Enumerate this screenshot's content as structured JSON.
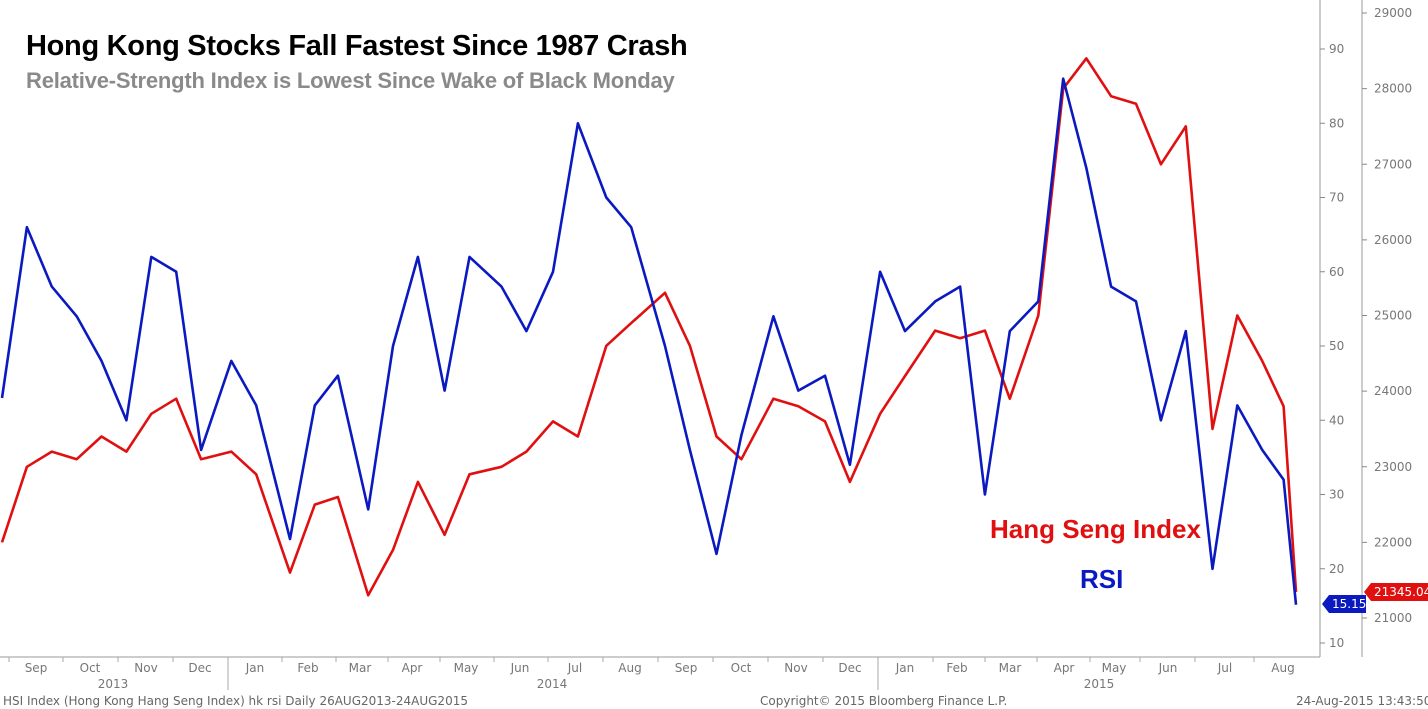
{
  "header": {
    "title": "Hong Kong Stocks Fall Fastest Since 1987 Crash",
    "subtitle": "Relative-Strength Index is Lowest Since Wake of Black Monday"
  },
  "footer": {
    "left": "HSI Index (Hong Kong Hang Seng Index) hk rsi  Daily 26AUG2013-24AUG2015",
    "center": "Copyright© 2015 Bloomberg Finance L.P.",
    "right": "24-Aug-2015 13:43:50"
  },
  "chart_data": {
    "type": "line",
    "x_months": [
      "Sep",
      "Oct",
      "Nov",
      "Dec",
      "Jan",
      "Feb",
      "Mar",
      "Apr",
      "May",
      "Jun",
      "Jul",
      "Aug",
      "Sep",
      "Oct",
      "Nov",
      "Dec",
      "Jan",
      "Feb",
      "Mar",
      "Apr",
      "May",
      "Jun",
      "Jul",
      "Aug"
    ],
    "x_years": [
      "2013",
      "2014",
      "2015"
    ],
    "x_range": [
      "2013-08-26",
      "2015-08-24"
    ],
    "rsi_axis": {
      "min": 5,
      "max": 95,
      "ticks": [
        10,
        20,
        30,
        40,
        50,
        60,
        70,
        80,
        90
      ]
    },
    "price_axis": {
      "min": 20500,
      "max": 29200,
      "ticks": [
        21000,
        22000,
        23000,
        24000,
        25000,
        26000,
        27000,
        28000,
        29000
      ]
    },
    "colors": {
      "rsi": "#0b1ac0",
      "hsi": "#e01010"
    },
    "series": [
      {
        "name": "Hang Seng Index",
        "axis": "price",
        "last_value": "21345.04",
        "points": [
          [
            "2013-08-26",
            22000
          ],
          [
            "2013-09-09",
            23000
          ],
          [
            "2013-09-23",
            23200
          ],
          [
            "2013-10-07",
            23100
          ],
          [
            "2013-10-21",
            23400
          ],
          [
            "2013-11-04",
            23200
          ],
          [
            "2013-11-18",
            23700
          ],
          [
            "2013-12-02",
            23900
          ],
          [
            "2013-12-16",
            23100
          ],
          [
            "2014-01-02",
            23200
          ],
          [
            "2014-01-16",
            22900
          ],
          [
            "2014-02-04",
            21600
          ],
          [
            "2014-02-18",
            22500
          ],
          [
            "2014-03-03",
            22600
          ],
          [
            "2014-03-20",
            21300
          ],
          [
            "2014-04-03",
            21900
          ],
          [
            "2014-04-17",
            22800
          ],
          [
            "2014-05-02",
            22100
          ],
          [
            "2014-05-16",
            22900
          ],
          [
            "2014-06-03",
            23000
          ],
          [
            "2014-06-17",
            23200
          ],
          [
            "2014-07-02",
            23600
          ],
          [
            "2014-07-16",
            23400
          ],
          [
            "2014-08-01",
            24600
          ],
          [
            "2014-08-15",
            24900
          ],
          [
            "2014-09-03",
            25300
          ],
          [
            "2014-09-17",
            24600
          ],
          [
            "2014-10-02",
            23400
          ],
          [
            "2014-10-16",
            23100
          ],
          [
            "2014-11-03",
            23900
          ],
          [
            "2014-11-17",
            23800
          ],
          [
            "2014-12-02",
            23600
          ],
          [
            "2014-12-16",
            22800
          ],
          [
            "2015-01-02",
            23700
          ],
          [
            "2015-01-16",
            24200
          ],
          [
            "2015-02-02",
            24800
          ],
          [
            "2015-02-16",
            24700
          ],
          [
            "2015-03-02",
            24800
          ],
          [
            "2015-03-16",
            23900
          ],
          [
            "2015-04-01",
            25000
          ],
          [
            "2015-04-15",
            28000
          ],
          [
            "2015-04-28",
            28400
          ],
          [
            "2015-05-12",
            27900
          ],
          [
            "2015-05-26",
            27800
          ],
          [
            "2015-06-09",
            27000
          ],
          [
            "2015-06-23",
            27500
          ],
          [
            "2015-07-08",
            23500
          ],
          [
            "2015-07-22",
            25000
          ],
          [
            "2015-08-05",
            24400
          ],
          [
            "2015-08-17",
            23800
          ],
          [
            "2015-08-24",
            21345.04
          ]
        ]
      },
      {
        "name": "RSI",
        "axis": "rsi",
        "last_value": "15.15",
        "points": [
          [
            "2013-08-26",
            43
          ],
          [
            "2013-09-09",
            66
          ],
          [
            "2013-09-23",
            58
          ],
          [
            "2013-10-07",
            54
          ],
          [
            "2013-10-21",
            48
          ],
          [
            "2013-11-04",
            40
          ],
          [
            "2013-11-18",
            62
          ],
          [
            "2013-12-02",
            60
          ],
          [
            "2013-12-16",
            36
          ],
          [
            "2014-01-02",
            48
          ],
          [
            "2014-01-16",
            42
          ],
          [
            "2014-02-04",
            24
          ],
          [
            "2014-02-18",
            42
          ],
          [
            "2014-03-03",
            46
          ],
          [
            "2014-03-20",
            28
          ],
          [
            "2014-04-03",
            50
          ],
          [
            "2014-04-17",
            62
          ],
          [
            "2014-05-02",
            44
          ],
          [
            "2014-05-16",
            62
          ],
          [
            "2014-06-03",
            58
          ],
          [
            "2014-06-17",
            52
          ],
          [
            "2014-07-02",
            60
          ],
          [
            "2014-07-16",
            80
          ],
          [
            "2014-08-01",
            70
          ],
          [
            "2014-08-15",
            66
          ],
          [
            "2014-09-03",
            50
          ],
          [
            "2014-09-17",
            36
          ],
          [
            "2014-10-02",
            22
          ],
          [
            "2014-10-16",
            38
          ],
          [
            "2014-11-03",
            54
          ],
          [
            "2014-11-17",
            44
          ],
          [
            "2014-12-02",
            46
          ],
          [
            "2014-12-16",
            34
          ],
          [
            "2015-01-02",
            60
          ],
          [
            "2015-01-16",
            52
          ],
          [
            "2015-02-02",
            56
          ],
          [
            "2015-02-16",
            58
          ],
          [
            "2015-03-02",
            30
          ],
          [
            "2015-03-16",
            52
          ],
          [
            "2015-04-01",
            56
          ],
          [
            "2015-04-15",
            86
          ],
          [
            "2015-04-28",
            74
          ],
          [
            "2015-05-12",
            58
          ],
          [
            "2015-05-26",
            56
          ],
          [
            "2015-06-09",
            40
          ],
          [
            "2015-06-23",
            52
          ],
          [
            "2015-07-08",
            20
          ],
          [
            "2015-07-22",
            42
          ],
          [
            "2015-08-05",
            36
          ],
          [
            "2015-08-17",
            32
          ],
          [
            "2015-08-24",
            15.15
          ]
        ]
      }
    ]
  }
}
